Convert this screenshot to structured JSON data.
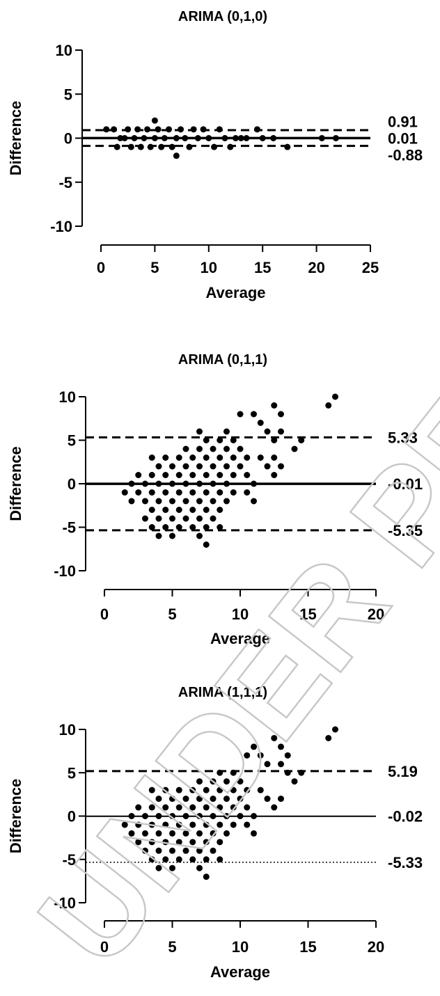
{
  "watermark": {
    "text": "UNDER PEER REVIEW",
    "color": "#c8c8c8"
  },
  "chart_data": [
    {
      "type": "scatter",
      "title": "ARIMA (0,1,0)",
      "xlabel": "Average",
      "ylabel": "Difference",
      "xlim": [
        0,
        25
      ],
      "ylim": [
        -10,
        10
      ],
      "xticks": [
        "0",
        "5",
        "10",
        "15",
        "20",
        "25"
      ],
      "yticks": [
        "10",
        "5",
        "0",
        "-5",
        "-10"
      ],
      "lines": [
        {
          "label": "0.91",
          "y": 0.91,
          "style": "dashed"
        },
        {
          "label": "0.01",
          "y": 0.01,
          "style": "solid"
        },
        {
          "label": "-0.88",
          "y": -0.88,
          "style": "dashed"
        }
      ],
      "points": [
        [
          0.5,
          1
        ],
        [
          1.2,
          1
        ],
        [
          1.5,
          -1
        ],
        [
          1.8,
          0
        ],
        [
          2.2,
          0
        ],
        [
          2.5,
          1
        ],
        [
          2.8,
          -1
        ],
        [
          3.1,
          0
        ],
        [
          3.4,
          1
        ],
        [
          3.7,
          -1
        ],
        [
          4.0,
          0
        ],
        [
          4.3,
          1
        ],
        [
          4.6,
          -1
        ],
        [
          5.0,
          2
        ],
        [
          5.0,
          0
        ],
        [
          5.3,
          1
        ],
        [
          5.6,
          -1
        ],
        [
          5.9,
          0
        ],
        [
          6.3,
          1
        ],
        [
          6.6,
          -1
        ],
        [
          7.0,
          -2
        ],
        [
          7.0,
          0
        ],
        [
          7.4,
          1
        ],
        [
          7.8,
          0
        ],
        [
          8.2,
          -1
        ],
        [
          8.6,
          1
        ],
        [
          9.0,
          0
        ],
        [
          9.5,
          1
        ],
        [
          10.0,
          0
        ],
        [
          10.5,
          -1
        ],
        [
          11.0,
          1
        ],
        [
          11.5,
          0
        ],
        [
          12.0,
          -1
        ],
        [
          12.5,
          0
        ],
        [
          13.0,
          0
        ],
        [
          13.5,
          0
        ],
        [
          14.5,
          1
        ],
        [
          15.0,
          0
        ],
        [
          16.0,
          0
        ],
        [
          17.3,
          -1
        ],
        [
          20.5,
          0
        ],
        [
          21.8,
          0
        ]
      ]
    },
    {
      "type": "scatter",
      "title": "ARIMA (0,1,1)",
      "xlabel": "Average",
      "ylabel": "Difference",
      "xlim": [
        0,
        20
      ],
      "ylim": [
        -10,
        10
      ],
      "xticks": [
        "0",
        "5",
        "10",
        "15",
        "20"
      ],
      "yticks": [
        "10",
        "5",
        "0",
        "-5",
        "-10"
      ],
      "lines": [
        {
          "label": "5.33",
          "y": 5.33,
          "style": "dashed"
        },
        {
          "label": "-0.01",
          "y": -0.01,
          "style": "solid"
        },
        {
          "label": "-5.35",
          "y": -5.35,
          "style": "dashed"
        }
      ],
      "points": [
        [
          1.5,
          -1
        ],
        [
          2.0,
          0
        ],
        [
          2.0,
          -2
        ],
        [
          2.5,
          1
        ],
        [
          2.5,
          -1
        ],
        [
          3.0,
          0
        ],
        [
          3.0,
          -2
        ],
        [
          3.0,
          -4
        ],
        [
          3.5,
          3
        ],
        [
          3.5,
          1
        ],
        [
          3.5,
          -1
        ],
        [
          3.5,
          -3
        ],
        [
          3.5,
          -5
        ],
        [
          4.0,
          2
        ],
        [
          4.0,
          0
        ],
        [
          4.0,
          -2
        ],
        [
          4.0,
          -4
        ],
        [
          4.0,
          -6
        ],
        [
          4.5,
          3
        ],
        [
          4.5,
          1
        ],
        [
          4.5,
          -1
        ],
        [
          4.5,
          -3
        ],
        [
          4.5,
          -5
        ],
        [
          5.0,
          2
        ],
        [
          5.0,
          0
        ],
        [
          5.0,
          -2
        ],
        [
          5.0,
          -4
        ],
        [
          5.0,
          -6
        ],
        [
          5.5,
          3
        ],
        [
          5.5,
          1
        ],
        [
          5.5,
          -1
        ],
        [
          5.5,
          -3
        ],
        [
          5.5,
          -5
        ],
        [
          6.0,
          4
        ],
        [
          6.0,
          2
        ],
        [
          6.0,
          0
        ],
        [
          6.0,
          -2
        ],
        [
          6.0,
          -4
        ],
        [
          6.5,
          3
        ],
        [
          6.5,
          1
        ],
        [
          6.5,
          -1
        ],
        [
          6.5,
          -3
        ],
        [
          6.5,
          -5
        ],
        [
          7.0,
          6
        ],
        [
          7.0,
          4
        ],
        [
          7.0,
          2
        ],
        [
          7.0,
          0
        ],
        [
          7.0,
          -2
        ],
        [
          7.0,
          -4
        ],
        [
          7.0,
          -6
        ],
        [
          7.5,
          5
        ],
        [
          7.5,
          3
        ],
        [
          7.5,
          1
        ],
        [
          7.5,
          -1
        ],
        [
          7.5,
          -3
        ],
        [
          7.5,
          -5
        ],
        [
          7.5,
          -7
        ],
        [
          8.0,
          4
        ],
        [
          8.0,
          2
        ],
        [
          8.0,
          0
        ],
        [
          8.0,
          -2
        ],
        [
          8.0,
          -4
        ],
        [
          8.5,
          5
        ],
        [
          8.5,
          3
        ],
        [
          8.5,
          1
        ],
        [
          8.5,
          -1
        ],
        [
          8.5,
          -3
        ],
        [
          8.5,
          -5
        ],
        [
          9.0,
          6
        ],
        [
          9.0,
          4
        ],
        [
          9.0,
          2
        ],
        [
          9.0,
          0
        ],
        [
          9.0,
          -2
        ],
        [
          9.5,
          5
        ],
        [
          9.5,
          3
        ],
        [
          9.5,
          1
        ],
        [
          9.5,
          -1
        ],
        [
          10.0,
          8
        ],
        [
          10.0,
          4
        ],
        [
          10.0,
          2
        ],
        [
          10.5,
          3
        ],
        [
          10.5,
          1
        ],
        [
          10.5,
          -1
        ],
        [
          11.0,
          8
        ],
        [
          11.0,
          0
        ],
        [
          11.0,
          -2
        ],
        [
          11.5,
          7
        ],
        [
          11.5,
          3
        ],
        [
          12.0,
          6
        ],
        [
          12.0,
          2
        ],
        [
          12.5,
          9
        ],
        [
          12.5,
          5
        ],
        [
          12.5,
          3
        ],
        [
          12.5,
          1
        ],
        [
          13.0,
          8
        ],
        [
          13.0,
          6
        ],
        [
          13.0,
          2
        ],
        [
          14.0,
          4
        ],
        [
          14.5,
          5
        ],
        [
          16.5,
          9
        ],
        [
          17.0,
          10
        ]
      ]
    },
    {
      "type": "scatter",
      "title": "ARIMA (1,1,1)",
      "xlabel": "Average",
      "ylabel": "Difference",
      "xlim": [
        0,
        20
      ],
      "ylim": [
        -10,
        10
      ],
      "xticks": [
        "0",
        "5",
        "10",
        "15",
        "20"
      ],
      "yticks": [
        "10",
        "5",
        "0",
        "-5",
        "-10"
      ],
      "lines": [
        {
          "label": "5.19",
          "y": 5.19,
          "style": "dashed"
        },
        {
          "label": "-0.02",
          "y": -0.02,
          "style": "solid-thin"
        },
        {
          "label": "-5.33",
          "y": -5.33,
          "style": "dotted"
        }
      ],
      "points": [
        [
          1.5,
          -1
        ],
        [
          2.0,
          0
        ],
        [
          2.0,
          -2
        ],
        [
          2.5,
          1
        ],
        [
          2.5,
          -1
        ],
        [
          2.5,
          -3
        ],
        [
          3.0,
          0
        ],
        [
          3.0,
          -2
        ],
        [
          3.0,
          -4
        ],
        [
          3.5,
          3
        ],
        [
          3.5,
          1
        ],
        [
          3.5,
          -1
        ],
        [
          3.5,
          -3
        ],
        [
          3.5,
          -5
        ],
        [
          4.0,
          2
        ],
        [
          4.0,
          0
        ],
        [
          4.0,
          -2
        ],
        [
          4.0,
          -4
        ],
        [
          4.0,
          -6
        ],
        [
          4.5,
          3
        ],
        [
          4.5,
          1
        ],
        [
          4.5,
          -1
        ],
        [
          4.5,
          -3
        ],
        [
          4.5,
          -5
        ],
        [
          5.0,
          2
        ],
        [
          5.0,
          0
        ],
        [
          5.0,
          -2
        ],
        [
          5.0,
          -4
        ],
        [
          5.0,
          -6
        ],
        [
          5.5,
          3
        ],
        [
          5.5,
          1
        ],
        [
          5.5,
          -1
        ],
        [
          5.5,
          -3
        ],
        [
          5.5,
          -5
        ],
        [
          6.0,
          2
        ],
        [
          6.0,
          0
        ],
        [
          6.0,
          -2
        ],
        [
          6.0,
          -4
        ],
        [
          6.5,
          3
        ],
        [
          6.5,
          1
        ],
        [
          6.5,
          -1
        ],
        [
          6.5,
          -3
        ],
        [
          6.5,
          -5
        ],
        [
          7.0,
          4
        ],
        [
          7.0,
          2
        ],
        [
          7.0,
          0
        ],
        [
          7.0,
          -2
        ],
        [
          7.0,
          -4
        ],
        [
          7.0,
          -6
        ],
        [
          7.5,
          3
        ],
        [
          7.5,
          1
        ],
        [
          7.5,
          -1
        ],
        [
          7.5,
          -3
        ],
        [
          7.5,
          -5
        ],
        [
          7.5,
          -7
        ],
        [
          8.0,
          4
        ],
        [
          8.0,
          2
        ],
        [
          8.0,
          0
        ],
        [
          8.0,
          -2
        ],
        [
          8.0,
          -4
        ],
        [
          8.5,
          5
        ],
        [
          8.5,
          3
        ],
        [
          8.5,
          1
        ],
        [
          8.5,
          -1
        ],
        [
          8.5,
          -3
        ],
        [
          8.5,
          -5
        ],
        [
          9.0,
          4
        ],
        [
          9.0,
          2
        ],
        [
          9.0,
          0
        ],
        [
          9.0,
          -2
        ],
        [
          9.5,
          5
        ],
        [
          9.5,
          3
        ],
        [
          9.5,
          1
        ],
        [
          9.5,
          -1
        ],
        [
          10.0,
          4
        ],
        [
          10.0,
          2
        ],
        [
          10.0,
          0
        ],
        [
          10.5,
          7
        ],
        [
          10.5,
          3
        ],
        [
          10.5,
          1
        ],
        [
          10.5,
          -1
        ],
        [
          11.0,
          8
        ],
        [
          11.0,
          0
        ],
        [
          11.0,
          -2
        ],
        [
          11.5,
          7
        ],
        [
          11.5,
          3
        ],
        [
          12.0,
          6
        ],
        [
          12.0,
          2
        ],
        [
          12.5,
          9
        ],
        [
          12.5,
          1
        ],
        [
          13.0,
          8
        ],
        [
          13.0,
          6
        ],
        [
          13.0,
          2
        ],
        [
          13.5,
          7
        ],
        [
          13.5,
          5
        ],
        [
          14.0,
          4
        ],
        [
          14.5,
          5
        ],
        [
          16.5,
          9
        ],
        [
          17.0,
          10
        ]
      ]
    }
  ]
}
